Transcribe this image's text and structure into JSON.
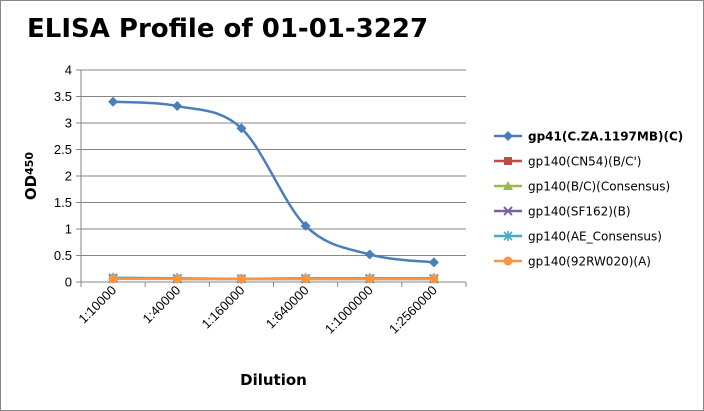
{
  "chart_data": {
    "type": "line",
    "title": "ELISA Profile of 01-01-3227",
    "xlabel": "Dilution",
    "ylabel_main": "OD",
    "ylabel_sub": "450",
    "categories": [
      "1:10000",
      "1:40000",
      "1:160000",
      "1:640000",
      "1:1000000",
      "1:2560000"
    ],
    "ylim": [
      0,
      4
    ],
    "yticks": [
      "0",
      "0.5",
      "1",
      "1.5",
      "2",
      "2.5",
      "3",
      "3.5",
      "4"
    ],
    "grid": true,
    "legend_position": "right",
    "series": [
      {
        "name": "gp41(C.ZA.1197MB)(C)",
        "color": "#4a7ebb",
        "marker": "diamond",
        "bold": true,
        "smooth": true,
        "values": [
          3.4,
          3.32,
          2.9,
          1.06,
          0.52,
          0.37
        ]
      },
      {
        "name": "gp140(CN54)(B/C')",
        "color": "#be4b48",
        "marker": "square",
        "bold": false,
        "smooth": true,
        "values": [
          0.07,
          0.06,
          0.06,
          0.06,
          0.06,
          0.06
        ]
      },
      {
        "name": "gp140(B/C)(Consensus)",
        "color": "#98b954",
        "marker": "triangle",
        "bold": false,
        "smooth": true,
        "values": [
          0.07,
          0.06,
          0.06,
          0.06,
          0.06,
          0.06
        ]
      },
      {
        "name": "gp140(SF162)(B)",
        "color": "#7d60a0",
        "marker": "x",
        "bold": false,
        "smooth": true,
        "values": [
          0.07,
          0.06,
          0.06,
          0.06,
          0.06,
          0.06
        ]
      },
      {
        "name": "gp140(AE_Consensus)",
        "color": "#46aac5",
        "marker": "star",
        "bold": false,
        "smooth": true,
        "values": [
          0.08,
          0.07,
          0.06,
          0.07,
          0.07,
          0.07
        ]
      },
      {
        "name": "gp140(92RW020)(A)",
        "color": "#f79646",
        "marker": "circle",
        "bold": false,
        "smooth": true,
        "values": [
          0.06,
          0.06,
          0.06,
          0.06,
          0.06,
          0.06
        ]
      }
    ]
  }
}
